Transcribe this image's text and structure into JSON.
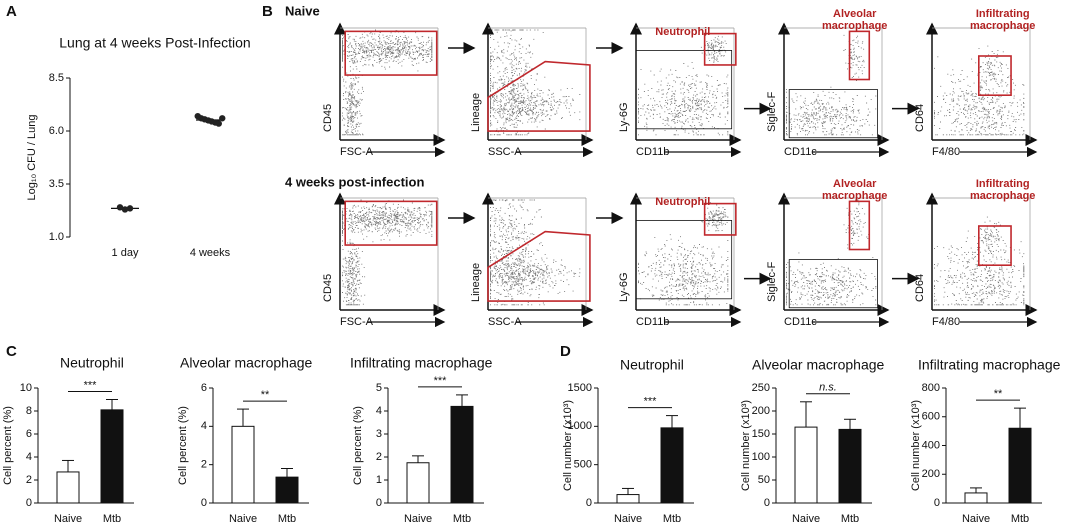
{
  "panel_labels": [
    "A",
    "B",
    "C",
    "D"
  ],
  "flow": {
    "rows": [
      "Naive",
      "4 weeks post-infection"
    ],
    "plots": [
      {
        "y": "CD45",
        "x": "FSC-A",
        "gate": []
      },
      {
        "y": "Lineage",
        "x": "SSC-A",
        "gate": []
      },
      {
        "y": "Ly-6G",
        "x": "CD11b",
        "gate": [
          "Neutrophil"
        ]
      },
      {
        "y": "Siglec-F",
        "x": "CD11c",
        "gate": [
          "Alveolar",
          "macrophage"
        ]
      },
      {
        "y": "CD64",
        "x": "F4/80",
        "gate": [
          "Infiltrating",
          "macrophage"
        ]
      }
    ]
  },
  "chart_data": [
    {
      "type": "dot",
      "title": "Lung at 4 weeks Post-Infection",
      "ylabel": "Log₁₀ CFU / Lung",
      "categories": [
        "1 day",
        "4 weeks"
      ],
      "values": [
        [
          2.4,
          2.3,
          2.35
        ],
        [
          6.7,
          6.6,
          6.55,
          6.5,
          6.45,
          6.4,
          6.35,
          6.6
        ]
      ],
      "color": "#222",
      "ylim": [
        1,
        8.5
      ],
      "yticks": [
        {
          "value": 1,
          "label": "1.0"
        },
        {
          "value": 3.5,
          "label": "3.5"
        },
        {
          "value": 6,
          "label": "6.0"
        },
        {
          "value": 8.5,
          "label": "8.5"
        }
      ]
    },
    {
      "type": "bar",
      "title": "Neutrophil",
      "ylabel": "Cell percent (%)",
      "categories": [
        "Naive",
        "Mtb"
      ],
      "values": [
        2.7,
        8.1
      ],
      "errors": [
        1.0,
        0.9
      ],
      "colors": [
        "#ffffff",
        "#111111"
      ],
      "significance": "***",
      "ylim": [
        0,
        10
      ],
      "yticks": [
        0,
        2,
        4,
        6,
        8,
        10
      ]
    },
    {
      "type": "bar",
      "title": "Alveolar macrophage",
      "ylabel": "Cell percent (%)",
      "categories": [
        "Naive",
        "Mtb"
      ],
      "values": [
        4.0,
        1.35
      ],
      "errors": [
        0.9,
        0.45
      ],
      "colors": [
        "#ffffff",
        "#111111"
      ],
      "significance": "**",
      "ylim": [
        0,
        6
      ],
      "yticks": [
        0,
        2,
        4,
        6
      ]
    },
    {
      "type": "bar",
      "title": "Infiltrating macrophage",
      "ylabel": "Cell percent (%)",
      "categories": [
        "Naive",
        "Mtb"
      ],
      "values": [
        1.75,
        4.2
      ],
      "errors": [
        0.3,
        0.5
      ],
      "colors": [
        "#ffffff",
        "#111111"
      ],
      "significance": "***",
      "ylim": [
        0,
        5
      ],
      "yticks": [
        0,
        1,
        2,
        3,
        4,
        5
      ]
    },
    {
      "type": "bar",
      "title": "Neutrophil",
      "ylabel": "Cell number (x10³)",
      "categories": [
        "Naive",
        "Mtb"
      ],
      "values": [
        110,
        980
      ],
      "errors": [
        80,
        160
      ],
      "colors": [
        "#ffffff",
        "#111111"
      ],
      "significance": "***",
      "ylim": [
        0,
        1500
      ],
      "yticks": [
        0,
        500,
        1000,
        1500
      ]
    },
    {
      "type": "bar",
      "title": "Alveolar macrophage",
      "ylabel": "Cell number (x10³)",
      "categories": [
        "Naive",
        "Mtb"
      ],
      "values": [
        165,
        160
      ],
      "errors": [
        55,
        22
      ],
      "colors": [
        "#ffffff",
        "#111111"
      ],
      "significance": "n.s.",
      "ylim": [
        0,
        250
      ],
      "yticks": [
        0,
        50,
        100,
        150,
        200,
        250
      ]
    },
    {
      "type": "bar",
      "title": "Infiltrating macrophage",
      "ylabel": "Cell number (x10³)",
      "categories": [
        "Naive",
        "Mtb"
      ],
      "values": [
        70,
        520
      ],
      "errors": [
        35,
        140
      ],
      "colors": [
        "#ffffff",
        "#111111"
      ],
      "significance": "**",
      "ylim": [
        0,
        800
      ],
      "yticks": [
        0,
        200,
        400,
        600,
        800
      ]
    }
  ]
}
